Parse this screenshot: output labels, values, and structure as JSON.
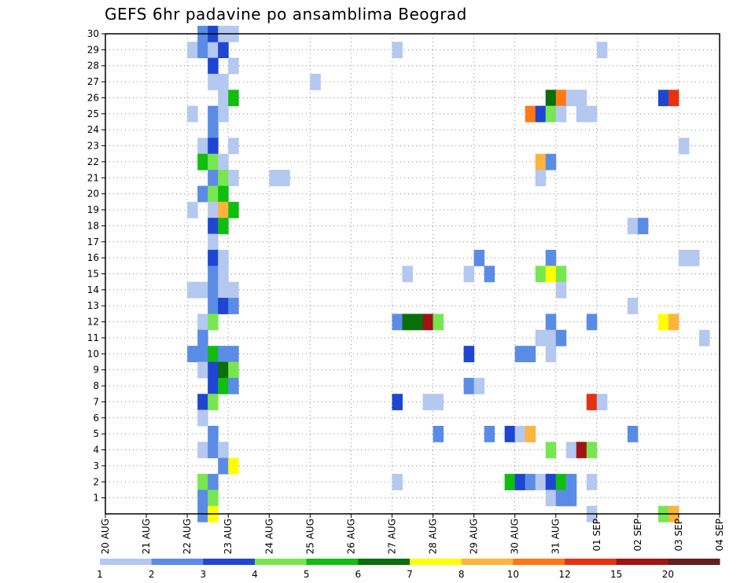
{
  "chart_data": {
    "type": "heatmap",
    "title": "GEFS 6hr padavine po ansamblima Beograd",
    "xlabel": "",
    "ylabel": "",
    "x_ticks": [
      "20 AUG",
      "21 AUG",
      "22 AUG",
      "23 AUG",
      "24 AUG",
      "25 AUG",
      "26 AUG",
      "27 AUG",
      "28 AUG",
      "29 AUG",
      "30 AUG",
      "31 AUG",
      "01 SEP",
      "02 SEP",
      "03 SEP",
      "04 SEP"
    ],
    "x_range_days": [
      0,
      15
    ],
    "y_ticks": [
      1,
      2,
      3,
      4,
      5,
      6,
      7,
      8,
      9,
      10,
      11,
      12,
      13,
      14,
      15,
      16,
      17,
      18,
      19,
      20,
      21,
      22,
      23,
      24,
      25,
      26,
      27,
      28,
      29,
      30
    ],
    "y_range": [
      0,
      30
    ],
    "grid": true,
    "colorbar": {
      "ticks": [
        "1",
        "2",
        "3",
        "4",
        "5",
        "6",
        "7",
        "8",
        "10",
        "12",
        "15",
        "20"
      ],
      "colors": [
        "#b4c8f0",
        "#5a8ce6",
        "#1e46d2",
        "#78e650",
        "#10be10",
        "#0a6e0a",
        "#ffff00",
        "#ffb43c",
        "#ff7814",
        "#e63214",
        "#a01414",
        "#641e1e"
      ]
    },
    "cells": [
      [
        2.0,
        29,
        1
      ],
      [
        2.25,
        29,
        2
      ],
      [
        2.5,
        29,
        1
      ],
      [
        2.75,
        29,
        3
      ],
      [
        2.0,
        25,
        1
      ],
      [
        2.0,
        19,
        1
      ],
      [
        2.0,
        14,
        1
      ],
      [
        2.0,
        10,
        2
      ],
      [
        2.25,
        30,
        2
      ],
      [
        2.25,
        23,
        1
      ],
      [
        2.25,
        22,
        5
      ],
      [
        2.25,
        20,
        2
      ],
      [
        2.25,
        14,
        1
      ],
      [
        2.25,
        12,
        1
      ],
      [
        2.25,
        11,
        2
      ],
      [
        2.25,
        10,
        2
      ],
      [
        2.25,
        9,
        1
      ],
      [
        2.25,
        7,
        3
      ],
      [
        2.25,
        6,
        1
      ],
      [
        2.25,
        4,
        1
      ],
      [
        2.25,
        2,
        4
      ],
      [
        2.25,
        1,
        2
      ],
      [
        2.25,
        0,
        2
      ],
      [
        2.5,
        30,
        3
      ],
      [
        2.5,
        28,
        3
      ],
      [
        2.5,
        27,
        1
      ],
      [
        2.5,
        25,
        2
      ],
      [
        2.5,
        24,
        2
      ],
      [
        2.5,
        23,
        3
      ],
      [
        2.5,
        22,
        4
      ],
      [
        2.5,
        21,
        2
      ],
      [
        2.5,
        20,
        4
      ],
      [
        2.5,
        19,
        1
      ],
      [
        2.5,
        18,
        3
      ],
      [
        2.5,
        17,
        1
      ],
      [
        2.5,
        16,
        3
      ],
      [
        2.5,
        15,
        2
      ],
      [
        2.5,
        14,
        2
      ],
      [
        2.5,
        13,
        2
      ],
      [
        2.5,
        12,
        4
      ],
      [
        2.5,
        10,
        5
      ],
      [
        2.5,
        9,
        3
      ],
      [
        2.5,
        8,
        3
      ],
      [
        2.5,
        7,
        4
      ],
      [
        2.5,
        5,
        2
      ],
      [
        2.5,
        4,
        2
      ],
      [
        2.5,
        2,
        2
      ],
      [
        2.5,
        1,
        4
      ],
      [
        2.5,
        0,
        7
      ],
      [
        2.75,
        30,
        1
      ],
      [
        2.75,
        27,
        1
      ],
      [
        2.75,
        26,
        1
      ],
      [
        2.75,
        25,
        1
      ],
      [
        2.75,
        22,
        1
      ],
      [
        2.75,
        21,
        4
      ],
      [
        2.75,
        20,
        5
      ],
      [
        2.75,
        19,
        8
      ],
      [
        2.75,
        18,
        5
      ],
      [
        2.75,
        16,
        1
      ],
      [
        2.75,
        15,
        1
      ],
      [
        2.75,
        14,
        1
      ],
      [
        2.75,
        13,
        3
      ],
      [
        2.75,
        10,
        2
      ],
      [
        2.75,
        9,
        6
      ],
      [
        2.75,
        8,
        5
      ],
      [
        2.75,
        4,
        1
      ],
      [
        2.75,
        3,
        2
      ],
      [
        3.0,
        30,
        1
      ],
      [
        3.0,
        28,
        1
      ],
      [
        3.0,
        26,
        5
      ],
      [
        3.0,
        23,
        1
      ],
      [
        3.0,
        21,
        1
      ],
      [
        3.0,
        19,
        5
      ],
      [
        3.0,
        14,
        1
      ],
      [
        3.0,
        13,
        2
      ],
      [
        3.0,
        10,
        2
      ],
      [
        3.0,
        9,
        4
      ],
      [
        3.0,
        8,
        2
      ],
      [
        3.0,
        3,
        7
      ],
      [
        4.0,
        21,
        1
      ],
      [
        4.25,
        21,
        1
      ],
      [
        5.0,
        27,
        1
      ],
      [
        7.0,
        29,
        1
      ],
      [
        7.0,
        12,
        2
      ],
      [
        7.0,
        7,
        3
      ],
      [
        7.0,
        2,
        1
      ],
      [
        7.25,
        15,
        1
      ],
      [
        7.25,
        12,
        6
      ],
      [
        7.5,
        12,
        6
      ],
      [
        7.75,
        12,
        11
      ],
      [
        7.75,
        7,
        1
      ],
      [
        8.0,
        12,
        4
      ],
      [
        8.0,
        7,
        1
      ],
      [
        8.0,
        5,
        2
      ],
      [
        8.75,
        15,
        1
      ],
      [
        8.75,
        8,
        2
      ],
      [
        8.75,
        10,
        3
      ],
      [
        9.0,
        8,
        1
      ],
      [
        9.0,
        16,
        2
      ],
      [
        9.25,
        15,
        2
      ],
      [
        9.25,
        5,
        2
      ],
      [
        9.75,
        5,
        3
      ],
      [
        9.75,
        2,
        5
      ],
      [
        10.0,
        5,
        1
      ],
      [
        10.0,
        2,
        3
      ],
      [
        10.25,
        5,
        8
      ],
      [
        10.25,
        2,
        2
      ],
      [
        10.0,
        10,
        2
      ],
      [
        10.25,
        10,
        2
      ],
      [
        10.25,
        25,
        9
      ],
      [
        10.5,
        25,
        3
      ],
      [
        10.5,
        22,
        8
      ],
      [
        10.5,
        21,
        1
      ],
      [
        10.5,
        15,
        4
      ],
      [
        10.5,
        11,
        1
      ],
      [
        10.5,
        2,
        1
      ],
      [
        10.75,
        26,
        6
      ],
      [
        10.75,
        25,
        4
      ],
      [
        10.75,
        22,
        2
      ],
      [
        10.75,
        16,
        2
      ],
      [
        10.75,
        15,
        7
      ],
      [
        10.75,
        12,
        2
      ],
      [
        10.75,
        11,
        1
      ],
      [
        10.75,
        10,
        1
      ],
      [
        10.75,
        4,
        4
      ],
      [
        10.75,
        2,
        3
      ],
      [
        10.75,
        1,
        1
      ],
      [
        11.0,
        26,
        9
      ],
      [
        11.0,
        25,
        1
      ],
      [
        11.0,
        15,
        4
      ],
      [
        11.0,
        14,
        1
      ],
      [
        11.0,
        11,
        2
      ],
      [
        11.0,
        2,
        5
      ],
      [
        11.0,
        1,
        2
      ],
      [
        11.25,
        26,
        1
      ],
      [
        11.25,
        2,
        2
      ],
      [
        11.25,
        1,
        2
      ],
      [
        11.25,
        4,
        1
      ],
      [
        11.5,
        26,
        1
      ],
      [
        11.5,
        25,
        1
      ],
      [
        11.5,
        4,
        11
      ],
      [
        11.75,
        25,
        1
      ],
      [
        11.75,
        12,
        2
      ],
      [
        11.75,
        7,
        10
      ],
      [
        11.75,
        4,
        4
      ],
      [
        11.75,
        2,
        1
      ],
      [
        11.75,
        0,
        1
      ],
      [
        12.0,
        29,
        1
      ],
      [
        12.0,
        7,
        1
      ],
      [
        12.75,
        18,
        1
      ],
      [
        12.75,
        13,
        1
      ],
      [
        12.75,
        5,
        2
      ],
      [
        13.0,
        18,
        2
      ],
      [
        13.5,
        26,
        3
      ],
      [
        13.5,
        12,
        7
      ],
      [
        13.5,
        0,
        4
      ],
      [
        13.75,
        26,
        10
      ],
      [
        13.75,
        12,
        8
      ],
      [
        13.75,
        0,
        8
      ],
      [
        14.0,
        23,
        1
      ],
      [
        14.0,
        16,
        1
      ],
      [
        14.25,
        16,
        1
      ],
      [
        14.5,
        11,
        1
      ]
    ]
  }
}
